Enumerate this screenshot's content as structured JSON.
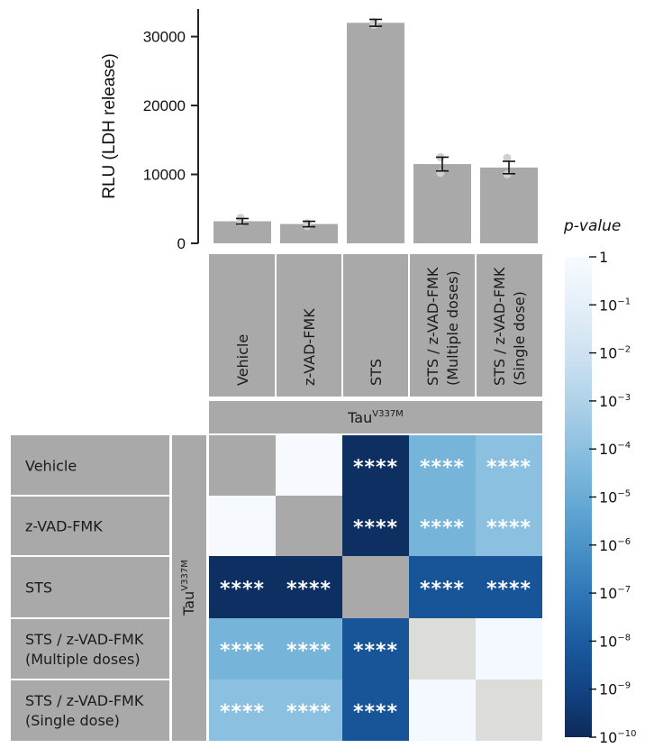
{
  "chart_data": {
    "type": "bar",
    "ylabel": "RLU (LDH release)",
    "ylim": [
      0,
      34000
    ],
    "yticks": [
      0,
      10000,
      20000,
      30000
    ],
    "categories": [
      "Vehicle",
      "z-VAD-FMK",
      "STS",
      "STS / z-VAD-FMK\n(Multiple doses)",
      "STS / z-VAD-FMK\n(Single dose)"
    ],
    "values": [
      3200,
      2800,
      32000,
      11500,
      11000
    ],
    "error": [
      400,
      400,
      500,
      1000,
      900
    ],
    "points": [
      [
        3700,
        3100
      ],
      [
        2500,
        2900
      ],
      [
        31700,
        32100
      ],
      [
        10200,
        12500
      ],
      [
        10000,
        12400
      ]
    ],
    "group_label_main": "Tau",
    "group_label_sup": "V337M",
    "heatmap": {
      "row_labels": [
        "Vehicle",
        "z-VAD-FMK",
        "STS",
        "STS / z-VAD-FMK\n(Multiple doses)",
        "STS / z-VAD-FMK\n(Single dose)"
      ],
      "col_labels": [
        "Vehicle",
        "z-VAD-FMK",
        "STS",
        "STS / z-VAD-FMK\n(Multiple doses)",
        "STS / z-VAD-FMK\n(Single dose)"
      ],
      "log10_p": [
        [
          null,
          -0.05,
          -9.8,
          -4.6,
          -4.0
        ],
        [
          -0.05,
          null,
          -9.8,
          -4.6,
          -4.0
        ],
        [
          -9.8,
          -9.8,
          null,
          -8.3,
          -8.3
        ],
        [
          -4.6,
          -4.6,
          -8.3,
          null,
          -0.2
        ],
        [
          -4.0,
          -4.0,
          -8.3,
          -0.2,
          null
        ]
      ],
      "gray_cells": [
        [
          3,
          3
        ],
        [
          4,
          4
        ]
      ],
      "significance": [
        [
          "",
          "",
          "****",
          "****",
          "****"
        ],
        [
          "",
          "",
          "****",
          "****",
          "****"
        ],
        [
          "****",
          "****",
          "",
          "****",
          "****"
        ],
        [
          "****",
          "****",
          "****",
          "",
          ""
        ],
        [
          "****",
          "****",
          "****",
          "",
          ""
        ]
      ]
    },
    "legend": {
      "title": "p-value",
      "ticks": [
        {
          "base": "1",
          "exp": ""
        },
        {
          "base": "10",
          "exp": "−1"
        },
        {
          "base": "10",
          "exp": "−2"
        },
        {
          "base": "10",
          "exp": "−3"
        },
        {
          "base": "10",
          "exp": "−4"
        },
        {
          "base": "10",
          "exp": "−5"
        },
        {
          "base": "10",
          "exp": "−6"
        },
        {
          "base": "10",
          "exp": "−7"
        },
        {
          "base": "10",
          "exp": "−8"
        },
        {
          "base": "10",
          "exp": "−9"
        },
        {
          "base": "10",
          "exp": "−10"
        }
      ]
    }
  }
}
